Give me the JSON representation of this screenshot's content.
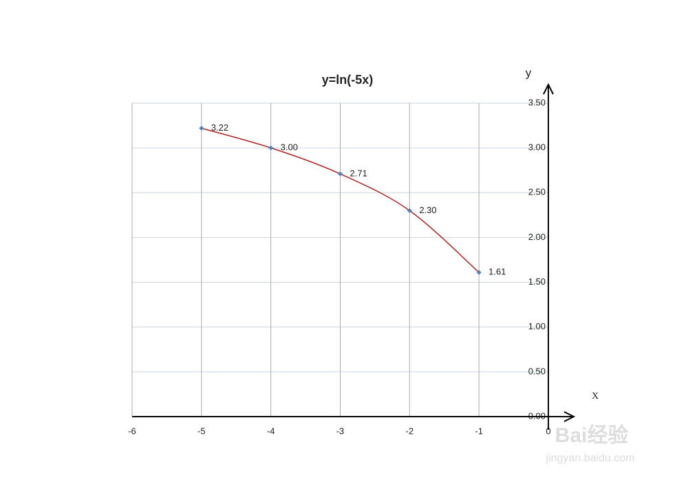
{
  "chart_data": {
    "type": "scatter-line",
    "title": "y=ln(-5x)",
    "x_label": "X",
    "y_label": "y",
    "x": [
      -5,
      -4,
      -3,
      -2,
      -1
    ],
    "series": [
      {
        "color": "#b22222",
        "marker_color": "#4f81bd",
        "values": [
          3.22,
          3,
          2.71,
          2.3,
          1.61
        ],
        "value_labels": [
          "3.22",
          "3.00",
          "2.71",
          "2.30",
          "1.61"
        ]
      }
    ],
    "xlim": [
      -6,
      0
    ],
    "xticks": [
      -6,
      -5,
      -4,
      -3,
      -2,
      -1,
      0
    ],
    "ylim": [
      0,
      3.5
    ],
    "yticks": [
      {
        "value": 0,
        "label": "0.00"
      },
      {
        "value": 0.5,
        "label": "0.50"
      },
      {
        "value": 1,
        "label": "1.00"
      },
      {
        "value": 1.5,
        "label": "1.50"
      },
      {
        "value": 2,
        "label": "2.00"
      },
      {
        "value": 2.5,
        "label": "2.50"
      },
      {
        "value": 3,
        "label": "3.00"
      },
      {
        "value": 3.5,
        "label": "3.50"
      }
    ],
    "grid": true,
    "watermark": "Bai经验",
    "watermark_url": "jingyan.baidu.com"
  }
}
